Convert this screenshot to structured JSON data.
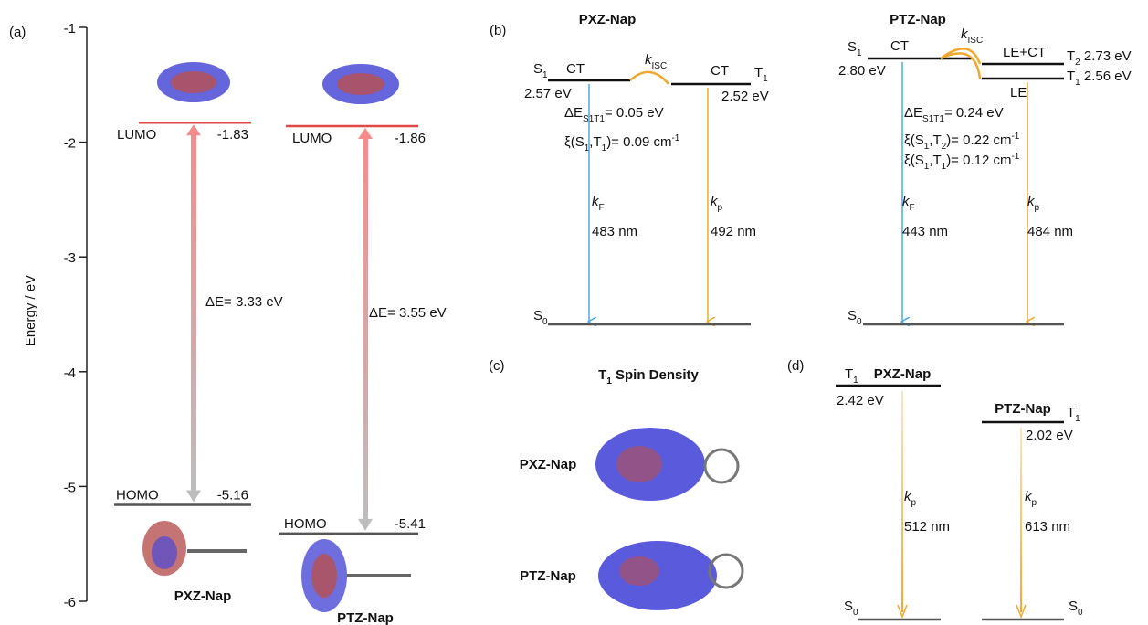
{
  "panel_a": {
    "label": "(a)",
    "y_axis_title": "Energy / eV",
    "y_ticks": [
      -1,
      -2,
      -3,
      -4,
      -5,
      -6
    ],
    "molecules": [
      {
        "name": "PXZ-Nap",
        "lumo_label": "LUMO",
        "lumo": -1.83,
        "homo_label": "HOMO",
        "homo": -5.16,
        "gap": "ΔE= 3.33 eV"
      },
      {
        "name": "PTZ-Nap",
        "lumo_label": "LUMO",
        "lumo": -1.86,
        "homo_label": "HOMO",
        "homo": -5.41,
        "gap": "ΔE= 3.55 eV"
      }
    ]
  },
  "panel_b": {
    "label": "(b)",
    "pxz": {
      "title": "PXZ-Nap",
      "s1": {
        "t": "S",
        "sub": "1"
      },
      "s1_type": "CT",
      "s1_energy": "2.57 eV",
      "kisc": {
        "t": "k",
        "sub": "ISC"
      },
      "t1_type": "CT",
      "t1": {
        "t": "T",
        "sub": "1"
      },
      "t1_energy": "2.52 eV",
      "delta": {
        "t": "ΔE",
        "sub": "S1T1",
        "rest": "= 0.05 eV"
      },
      "xi": [
        {
          "a": "ξ(S",
          "s1": "1",
          "b": ",T",
          "s2": "1",
          "c": ")= 0.09 cm",
          "sup": "-1"
        }
      ],
      "kf": {
        "t": "k",
        "sub": "F"
      },
      "kf_wl": "483 nm",
      "kp": {
        "t": "k",
        "sub": "p"
      },
      "kp_wl": "492 nm",
      "s0": {
        "t": "S",
        "sub": "0"
      }
    },
    "ptz": {
      "title": "PTZ-Nap",
      "s1": {
        "t": "S",
        "sub": "1"
      },
      "s1_type": "CT",
      "s1_energy": "2.80 eV",
      "kisc": {
        "t": "k",
        "sub": "ISC"
      },
      "t2_type": "LE+CT",
      "t2": {
        "t": "T",
        "sub": "2",
        "rest": " 2.73 eV"
      },
      "t1": {
        "t": "T",
        "sub": "1",
        "rest": " 2.56 eV"
      },
      "t1_type": "LE",
      "delta": {
        "t": "ΔE",
        "sub": "S1T1",
        "rest": "= 0.24 eV"
      },
      "xi": [
        {
          "a": "ξ(S",
          "s1": "1",
          "b": ",T",
          "s2": "2",
          "c": ")= 0.22 cm",
          "sup": "-1"
        },
        {
          "a": "ξ(S",
          "s1": "1",
          "b": ",T",
          "s2": "1",
          "c": ")= 0.12 cm",
          "sup": "-1"
        }
      ],
      "kf": {
        "t": "k",
        "sub": "F"
      },
      "kf_wl": "443 nm",
      "kp": {
        "t": "k",
        "sub": "p"
      },
      "kp_wl": "484 nm",
      "s0": {
        "t": "S",
        "sub": "0"
      }
    }
  },
  "panel_c": {
    "label": "(c)",
    "title": {
      "t": "T",
      "sub": "1",
      "rest": " Spin Density"
    },
    "molecules": [
      "PXZ-Nap",
      "PTZ-Nap"
    ]
  },
  "panel_d": {
    "label": "(d)",
    "pxz": {
      "t1": {
        "t": "T",
        "sub": "1"
      },
      "name": "PXZ-Nap",
      "energy": "2.42 eV",
      "kp": {
        "t": "k",
        "sub": "p"
      },
      "wl": "512 nm",
      "s0": {
        "t": "S",
        "sub": "0"
      }
    },
    "ptz": {
      "name": "PTZ-Nap",
      "t1": {
        "t": "T",
        "sub": "1"
      },
      "energy": "2.02 eV",
      "kp": {
        "t": "k",
        "sub": "p"
      },
      "wl": "613 nm",
      "s0": {
        "t": "S",
        "sub": "0"
      }
    }
  }
}
